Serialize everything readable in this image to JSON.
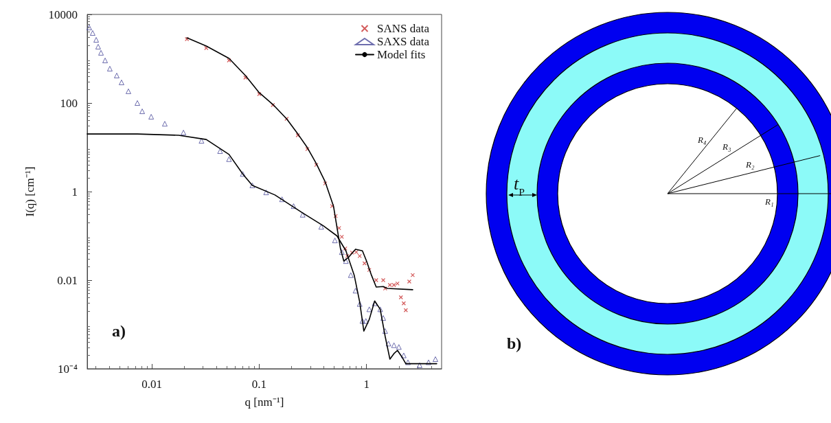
{
  "chart_data": [
    {
      "type": "scatter",
      "xlabel": "q [nm⁻¹]",
      "ylabel": "I(q) [cm⁻¹]",
      "log": "xy",
      "xlim": [
        0.0025,
        5
      ],
      "ylim": [
        0.0001,
        10000
      ],
      "xticks": [
        0.01,
        0.1,
        1
      ],
      "yticks": [
        {
          "value": 0.0001,
          "label": "10⁻⁴"
        },
        0.01,
        1,
        100,
        10000
      ],
      "legend": "top right",
      "annotations": [
        "a)"
      ],
      "series": [
        {
          "name": "SANS data",
          "type": "scatter",
          "marker": "cross",
          "color": "#c83232",
          "x": [
            0.0212,
            0.0321,
            0.0523,
            0.0744,
            0.1,
            0.134,
            0.18,
            0.229,
            0.281,
            0.34,
            0.412,
            0.478,
            0.515,
            0.555,
            0.588,
            0.633,
            0.662,
            0.733,
            0.802,
            0.863,
            0.957,
            1.06,
            1.23,
            1.43,
            1.49,
            1.65,
            1.8,
            1.94,
            2.09,
            2.22,
            2.32,
            2.5,
            2.69
          ],
          "values": [
            2770,
            1740,
            915,
            375,
            159,
            90,
            44,
            18.7,
            9.1,
            4.0,
            1.53,
            0.47,
            0.28,
            0.15,
            0.095,
            0.052,
            0.035,
            0.042,
            0.043,
            0.035,
            0.024,
            0.017,
            0.01,
            0.01,
            0.0065,
            0.0078,
            0.0078,
            0.0084,
            0.0041,
            0.003,
            0.0021,
            0.0093,
            0.013
          ]
        },
        {
          "name": "SAXS data",
          "type": "scatter",
          "marker": "triangle",
          "color": "#4a4a9a",
          "x": [
            0.00261,
            0.00281,
            0.00303,
            0.00316,
            0.00336,
            0.00367,
            0.00406,
            0.00471,
            0.00522,
            0.00605,
            0.00733,
            0.00813,
            0.00986,
            0.0132,
            0.0197,
            0.029,
            0.0432,
            0.0523,
            0.0702,
            0.0863,
            0.116,
            0.163,
            0.209,
            0.254,
            0.378,
            0.507,
            0.588,
            0.642,
            0.713,
            0.789,
            0.863,
            0.915,
            0.985,
            1.06,
            1.19,
            1.34,
            1.43,
            1.49,
            1.6,
            1.8,
            2.0,
            2.22,
            2.43,
            3.12,
            3.78,
            4.38
          ],
          "values": [
            5070,
            3810,
            2670,
            1870,
            1360,
            915,
            596,
            417,
            292,
            184,
            100,
            65,
            49,
            34,
            21.5,
            14,
            8.2,
            5.4,
            2.5,
            1.38,
            0.96,
            0.67,
            0.47,
            0.3,
            0.16,
            0.079,
            0.043,
            0.027,
            0.013,
            0.0058,
            0.0029,
            0.0012,
            0.0012,
            0.0022,
            0.003,
            0.0022,
            0.0014,
            0.00071,
            0.00037,
            0.00034,
            0.00031,
            0.0002,
            0.00014,
            0.00012,
            0.00014,
            0.000165
          ]
        },
        {
          "name": "Model fits",
          "type": "line",
          "marker": "none",
          "color": "#000000",
          "x": [
            0.0025,
            0.00733,
            0.0178,
            0.0321,
            0.0523,
            0.0702,
            0.0863,
            0.14,
            0.254,
            0.394,
            0.53,
            0.642,
            0.767,
            0.863,
            0.943,
            1.06,
            1.19,
            1.34,
            1.49,
            1.65,
            1.8,
            1.94,
            2.15,
            2.32,
            4.5
          ],
          "values": [
            20,
            20,
            18.7,
            15,
            6.9,
            2.5,
            1.38,
            0.84,
            0.33,
            0.17,
            0.1,
            0.046,
            0.013,
            0.0032,
            0.00071,
            0.0013,
            0.0034,
            0.0022,
            0.00054,
            0.000165,
            0.00022,
            0.00026,
            0.00018,
            0.00013,
            0.00013
          ]
        },
        {
          "type": "line",
          "marker": "none",
          "color": "#000000",
          "x": [
            0.0212,
            0.0321,
            0.0523,
            0.0744,
            0.1,
            0.134,
            0.18,
            0.229,
            0.281,
            0.34,
            0.412,
            0.492,
            0.571,
            0.614,
            0.681,
            0.789,
            0.915,
            1.0,
            1.11,
            1.23,
            1.43,
            1.56,
            2.69
          ],
          "values": [
            2970,
            1940,
            1020,
            417,
            171,
            93,
            44,
            20,
            9.8,
            4.3,
            1.65,
            0.47,
            0.052,
            0.027,
            0.033,
            0.05,
            0.046,
            0.027,
            0.013,
            0.007,
            0.0072,
            0.0065,
            0.0061
          ]
        }
      ]
    },
    {
      "type": "other",
      "annotations": [
        "b)",
        "R₁",
        "R₂",
        "R₃",
        "R₄",
        "t$_{P}$"
      ]
    }
  ]
}
